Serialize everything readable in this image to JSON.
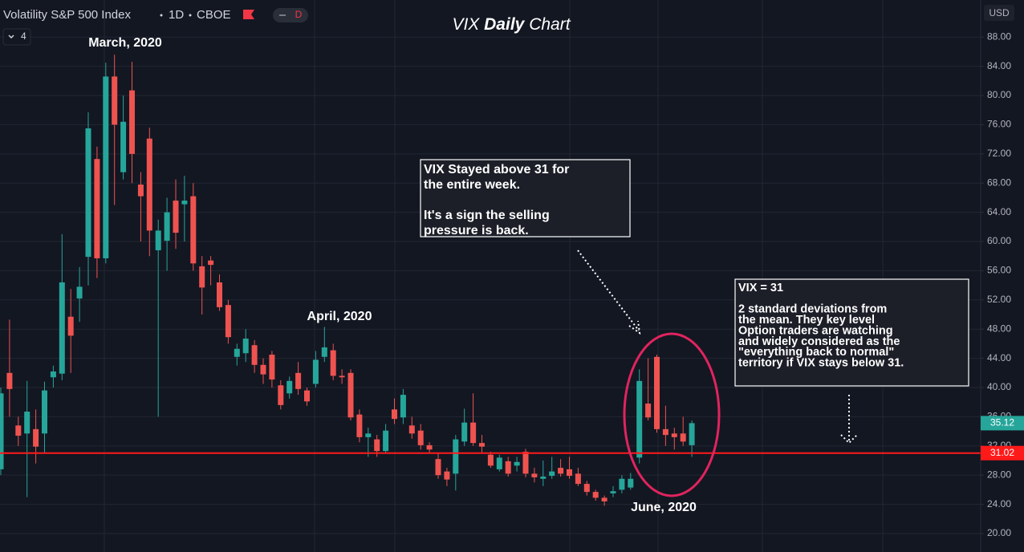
{
  "header": {
    "symbol": "Volatility S&P 500 Index",
    "interval": "1D",
    "exchange": "CBOE",
    "badge": "D",
    "indicators": "4",
    "currency": "USD"
  },
  "chart_data": {
    "type": "candlestick",
    "title_parts": [
      "VIX",
      "Daily",
      "Chart"
    ],
    "up_color": "#26a69a",
    "down_color": "#ef5350",
    "open": [
      28.8,
      42,
      34.8,
      33.7,
      34.3,
      33.7,
      41.4,
      41.9,
      49.7,
      52.2,
      57.9,
      71.3,
      57.7,
      82.6,
      69.5,
      80.7,
      67.8,
      74.1,
      58.8,
      60.1,
      65.6,
      65.1,
      66.2,
      56.6,
      57.4,
      54.4,
      51.3,
      44.2,
      44.7,
      45.8,
      43.1,
      44.5,
      40.3,
      39.2,
      42,
      39.6,
      40.5,
      44.2,
      45.1,
      41.6,
      42,
      36.3,
      33.2,
      32.9,
      31.3,
      37,
      35.9,
      34.8,
      34.1,
      32.1,
      30.2,
      28.5,
      28.2,
      32.6,
      35.2,
      32.4,
      30.8,
      28.8,
      29.9,
      29.3,
      31.2,
      28.2,
      27.5,
      27.9,
      29,
      28.8,
      28.2,
      26.8,
      25.7,
      24.9,
      25.5,
      26,
      26.3,
      30.4,
      37.8,
      44.2,
      34.3,
      33.7,
      33.7,
      32.1
    ],
    "high": [
      40,
      49.3,
      36,
      40.9,
      37,
      40.8,
      43,
      61,
      53.5,
      56.5,
      77.7,
      73,
      84.5,
      85.6,
      80,
      84.6,
      69.5,
      75.6,
      63,
      66,
      68.5,
      69,
      68,
      58,
      58,
      55.5,
      52,
      46,
      48,
      46.5,
      44,
      45,
      41,
      41.5,
      43.5,
      40,
      45,
      48.3,
      46,
      42.5,
      42.5,
      37,
      34.5,
      33.5,
      35,
      38.5,
      39.8,
      36,
      35,
      32.5,
      31,
      29,
      33.5,
      37.1,
      39.2,
      33.5,
      31.2,
      30.8,
      30.5,
      30.5,
      31.6,
      29,
      30,
      30.5,
      30.2,
      30.5,
      29,
      27.2,
      26,
      25.2,
      26.5,
      28,
      28.3,
      42.5,
      44,
      44.5,
      37.5,
      34.5,
      36,
      35.5
    ],
    "low": [
      28,
      36,
      32,
      25,
      29.6,
      31,
      40,
      41,
      42,
      49,
      54,
      55,
      57,
      65,
      68.5,
      68,
      60,
      58,
      36,
      56,
      59,
      60,
      56,
      50,
      54,
      50.5,
      46,
      43,
      43.5,
      42,
      40.5,
      40,
      37,
      38.5,
      39,
      37.5,
      40,
      43.5,
      41,
      40.5,
      35.5,
      32.5,
      30.5,
      30.5,
      31,
      35,
      35,
      33,
      31.5,
      31,
      27.5,
      26.5,
      25.9,
      32,
      32,
      31,
      29,
      28.5,
      27.8,
      28.5,
      27.7,
      27,
      26.5,
      27.5,
      27.8,
      27.5,
      26.5,
      25.2,
      24.5,
      23.8,
      25,
      25.5,
      26,
      29.6,
      35.5,
      33.8,
      32,
      31.5,
      32,
      30.5
    ],
    "close": [
      39.2,
      39.8,
      33.4,
      36.7,
      31.9,
      39.6,
      42.2,
      54.4,
      47.1,
      53.8,
      75.5,
      57.7,
      82.6,
      76,
      76.4,
      72,
      66.2,
      61.5,
      61.5,
      64,
      61.2,
      65.6,
      57,
      53.7,
      56.8,
      51,
      46.9,
      45.3,
      46.7,
      43.1,
      41.8,
      41.1,
      37.6,
      40.9,
      39.8,
      38.1,
      43.8,
      45.5,
      41.6,
      41.4,
      35.9,
      33.2,
      33.7,
      31.3,
      34.1,
      35.7,
      39,
      33.7,
      32.1,
      31.5,
      28,
      27.4,
      32.9,
      35.2,
      32.4,
      31.9,
      29.3,
      30.4,
      28.2,
      29.8,
      28.2,
      27.7,
      27.8,
      28.5,
      28.2,
      27.9,
      26.8,
      25.7,
      24.9,
      24.4,
      25.8,
      27.5,
      27.5,
      40.9,
      35.9,
      34.3,
      33.5,
      33.2,
      32.6,
      35.12
    ],
    "ylim": [
      17.47,
      93.08
    ],
    "yticks": [
      {
        "value": 20,
        "label": "20.00"
      },
      {
        "value": 24,
        "label": "24.00"
      },
      {
        "value": 28,
        "label": "28.00"
      },
      {
        "value": 32,
        "label": "32.00"
      },
      {
        "value": 36,
        "label": "36.00"
      },
      {
        "value": 40,
        "label": "40.00"
      },
      {
        "value": 44,
        "label": "44.00"
      },
      {
        "value": 48,
        "label": "48.00"
      },
      {
        "value": 52,
        "label": "52.00"
      },
      {
        "value": 56,
        "label": "56.00"
      },
      {
        "value": 60,
        "label": "60.00"
      },
      {
        "value": 64,
        "label": "64.00"
      },
      {
        "value": 68,
        "label": "68.00"
      },
      {
        "value": 72,
        "label": "72.00"
      },
      {
        "value": 76,
        "label": "76.00"
      },
      {
        "value": 80,
        "label": "80.00"
      },
      {
        "value": 84,
        "label": "84.00"
      },
      {
        "value": 88,
        "label": "88.00"
      }
    ],
    "grid": true,
    "last_price": 35.12,
    "level": 31.02,
    "level_color": "#ff1a1a",
    "period_labels": [
      "March, 2020",
      "April, 2020",
      "June, 2020"
    ],
    "notes": [
      [
        [
          "VIX Stayed above 31 for",
          "the entire week."
        ],
        [
          "It's a sign the selling",
          "pressure is back."
        ]
      ],
      [
        [
          "VIX = 31"
        ],
        [
          "2 standard deviations from",
          "the mean. They key level",
          "Option traders are watching",
          "and widely considered as the",
          "\"everything back to normal\"",
          "territory if VIX stays below 31."
        ]
      ]
    ]
  }
}
